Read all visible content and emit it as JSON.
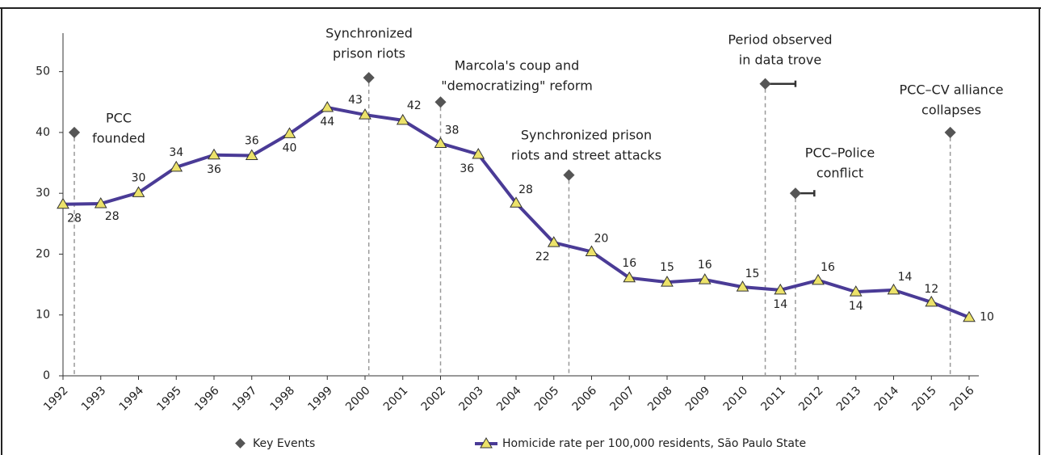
{
  "chart_data": {
    "type": "line",
    "xlim": [
      1992,
      2016
    ],
    "xticks": [
      1992,
      1993,
      1994,
      1995,
      1996,
      1997,
      1998,
      1999,
      2000,
      2001,
      2002,
      2003,
      2004,
      2005,
      2006,
      2007,
      2008,
      2009,
      2010,
      2011,
      2012,
      2013,
      2014,
      2015,
      2016
    ],
    "ylim": [
      0,
      55
    ],
    "yticks": [
      0,
      10,
      20,
      30,
      40,
      50
    ],
    "series": [
      {
        "name": "Homicide rate per 100,000 residents, São Paulo State",
        "color": "#4a3b96",
        "marker_color": "#ece26a",
        "x": [
          1992,
          1993,
          1994,
          1995,
          1996,
          1997,
          1998,
          1999,
          2000,
          2001,
          2002,
          2003,
          2004,
          2005,
          2006,
          2007,
          2008,
          2009,
          2010,
          2011,
          2012,
          2013,
          2014,
          2015,
          2016
        ],
        "values": [
          28.2,
          28.3,
          30.1,
          34.3,
          36.3,
          36.2,
          39.8,
          44.1,
          42.9,
          42.0,
          38.2,
          36.4,
          28.4,
          21.9,
          20.4,
          16.1,
          15.4,
          15.8,
          14.6,
          14.1,
          15.7,
          13.8,
          14.1,
          12.1,
          9.6
        ],
        "value_labels": [
          "28",
          "28",
          "30",
          "34",
          "36",
          "36",
          "40",
          "44",
          "43",
          "42",
          "38",
          "36",
          "28",
          "22",
          "20",
          "16",
          "15",
          "16",
          "15",
          "14",
          "16",
          "14",
          "14",
          "12",
          "10"
        ]
      }
    ],
    "events": {
      "name": "Key Events",
      "color": "#555555",
      "x": [
        1992.3,
        2000.1,
        2002,
        2005.4,
        2010.6,
        2011.4,
        2015.5
      ],
      "values": [
        40,
        49,
        45,
        33,
        48,
        30,
        40
      ],
      "x_end": [
        null,
        null,
        null,
        null,
        2011.4,
        2011.9,
        null
      ],
      "labels": [
        [
          "PCC",
          "founded"
        ],
        [
          "Synchronized",
          "prison riots"
        ],
        [
          "Marcola's coup and",
          "\"democratizing\" reform"
        ],
        [
          "Synchronized prison",
          "riots and street attacks"
        ],
        [
          "Period observed",
          "in data trove"
        ],
        [
          "PCC–Police",
          "conflict"
        ],
        [
          "PCC–CV alliance",
          "collapses"
        ]
      ]
    }
  }
}
